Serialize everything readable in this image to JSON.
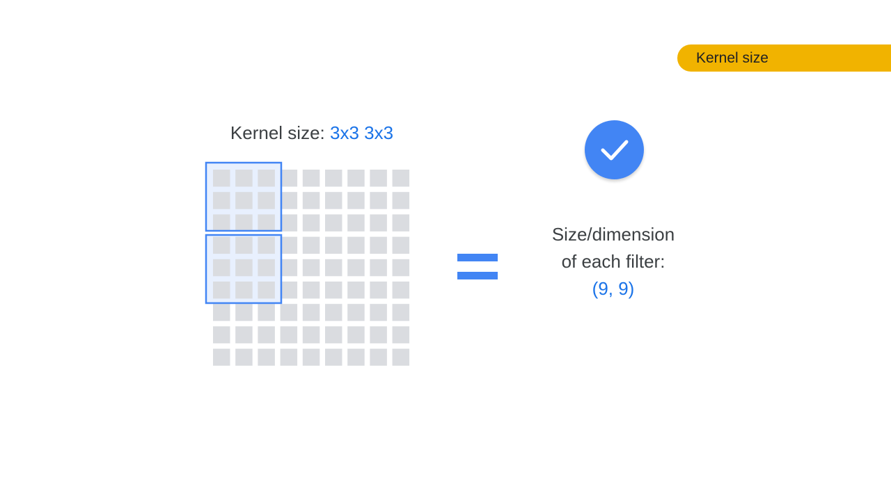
{
  "tag": {
    "label": "Kernel size",
    "color": "#f1b300"
  },
  "kernel": {
    "title_prefix": "Kernel size:",
    "title_value": "3x3 3x3",
    "grid_rows": 9,
    "grid_cols": 9,
    "cell_color": "#dadce0",
    "highlight_color": "#4285f4",
    "highlight_fill": "#e8f0fe"
  },
  "equals_color": "#4285f4",
  "check": {
    "icon": "checkmark-icon",
    "color": "#4285f4"
  },
  "result": {
    "line1": "Size/dimension",
    "line2": "of each filter:",
    "value": "(9, 9)"
  }
}
